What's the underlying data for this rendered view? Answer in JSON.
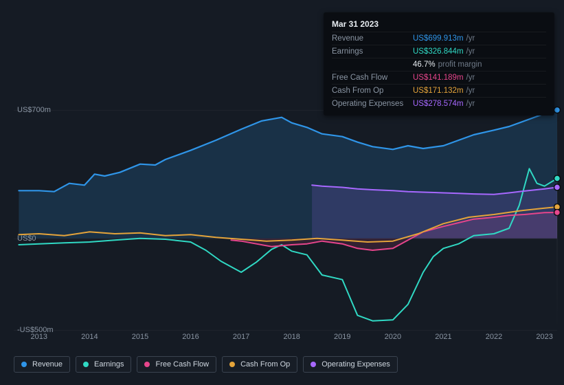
{
  "chart": {
    "type": "area-line",
    "background_color": "#151b24",
    "grid_color": "rgba(255,255,255,0.04)",
    "ylabel_color": "#8a95a3",
    "xlabel_color": "#8a95a3",
    "axis_fontsize": 11,
    "y_axis": {
      "min": -500,
      "max": 700,
      "ticks": [
        {
          "value": 700,
          "label": "US$700m"
        },
        {
          "value": 0,
          "label": "US$0"
        },
        {
          "value": -500,
          "label": "-US$500m"
        }
      ]
    },
    "x_axis": {
      "min": 2012.5,
      "max": 2023.25,
      "ticks": [
        2013,
        2014,
        2015,
        2016,
        2017,
        2018,
        2019,
        2020,
        2021,
        2022,
        2023
      ]
    },
    "cursor_x": 2023.25,
    "series": [
      {
        "id": "revenue",
        "label": "Revenue",
        "color": "#2f95e8",
        "fill_opacity": 0.18,
        "line_width": 2.2,
        "points": [
          [
            2012.6,
            260
          ],
          [
            2013.0,
            260
          ],
          [
            2013.3,
            255
          ],
          [
            2013.6,
            300
          ],
          [
            2013.9,
            290
          ],
          [
            2014.1,
            350
          ],
          [
            2014.3,
            340
          ],
          [
            2014.6,
            360
          ],
          [
            2015.0,
            405
          ],
          [
            2015.3,
            400
          ],
          [
            2015.5,
            430
          ],
          [
            2016.0,
            480
          ],
          [
            2016.5,
            535
          ],
          [
            2017.0,
            595
          ],
          [
            2017.4,
            640
          ],
          [
            2017.8,
            660
          ],
          [
            2018.0,
            630
          ],
          [
            2018.3,
            605
          ],
          [
            2018.6,
            570
          ],
          [
            2019.0,
            555
          ],
          [
            2019.3,
            525
          ],
          [
            2019.6,
            500
          ],
          [
            2020.0,
            485
          ],
          [
            2020.3,
            505
          ],
          [
            2020.6,
            490
          ],
          [
            2021.0,
            505
          ],
          [
            2021.3,
            535
          ],
          [
            2021.6,
            565
          ],
          [
            2022.0,
            590
          ],
          [
            2022.3,
            610
          ],
          [
            2022.6,
            640
          ],
          [
            2023.0,
            680
          ],
          [
            2023.25,
            699.913
          ]
        ]
      },
      {
        "id": "earnings",
        "label": "Earnings",
        "color": "#30d9c4",
        "fill_opacity": 0.0,
        "line_width": 2.0,
        "points": [
          [
            2012.6,
            -35
          ],
          [
            2013.0,
            -30
          ],
          [
            2013.5,
            -25
          ],
          [
            2014.0,
            -20
          ],
          [
            2014.5,
            -10
          ],
          [
            2015.0,
            0
          ],
          [
            2015.5,
            -5
          ],
          [
            2016.0,
            -20
          ],
          [
            2016.3,
            -65
          ],
          [
            2016.6,
            -125
          ],
          [
            2017.0,
            -185
          ],
          [
            2017.3,
            -130
          ],
          [
            2017.6,
            -60
          ],
          [
            2017.8,
            -35
          ],
          [
            2018.0,
            -70
          ],
          [
            2018.3,
            -90
          ],
          [
            2018.6,
            -200
          ],
          [
            2019.0,
            -225
          ],
          [
            2019.3,
            -420
          ],
          [
            2019.6,
            -450
          ],
          [
            2020.0,
            -445
          ],
          [
            2020.3,
            -360
          ],
          [
            2020.6,
            -185
          ],
          [
            2020.8,
            -100
          ],
          [
            2021.0,
            -55
          ],
          [
            2021.3,
            -30
          ],
          [
            2021.6,
            15
          ],
          [
            2022.0,
            25
          ],
          [
            2022.3,
            55
          ],
          [
            2022.5,
            180
          ],
          [
            2022.7,
            380
          ],
          [
            2022.85,
            300
          ],
          [
            2023.0,
            285
          ],
          [
            2023.25,
            326.844
          ]
        ]
      },
      {
        "id": "freecashflow",
        "label": "Free Cash Flow",
        "color": "#e6458b",
        "fill_opacity": 0.14,
        "line_width": 2.0,
        "points": [
          [
            2016.8,
            -10
          ],
          [
            2017.0,
            -15
          ],
          [
            2017.3,
            -30
          ],
          [
            2017.6,
            -45
          ],
          [
            2018.0,
            -35
          ],
          [
            2018.3,
            -30
          ],
          [
            2018.6,
            -15
          ],
          [
            2019.0,
            -30
          ],
          [
            2019.3,
            -55
          ],
          [
            2019.6,
            -65
          ],
          [
            2020.0,
            -55
          ],
          [
            2020.3,
            -10
          ],
          [
            2020.6,
            35
          ],
          [
            2021.0,
            65
          ],
          [
            2021.3,
            85
          ],
          [
            2021.6,
            105
          ],
          [
            2022.0,
            115
          ],
          [
            2022.3,
            125
          ],
          [
            2022.6,
            130
          ],
          [
            2023.0,
            140
          ],
          [
            2023.25,
            141.189
          ]
        ]
      },
      {
        "id": "cashfromop",
        "label": "Cash From Op",
        "color": "#e5a43a",
        "fill_opacity": 0.0,
        "line_width": 2.0,
        "points": [
          [
            2012.6,
            20
          ],
          [
            2013.0,
            25
          ],
          [
            2013.5,
            15
          ],
          [
            2014.0,
            35
          ],
          [
            2014.5,
            25
          ],
          [
            2015.0,
            30
          ],
          [
            2015.5,
            15
          ],
          [
            2016.0,
            20
          ],
          [
            2016.5,
            5
          ],
          [
            2017.0,
            -5
          ],
          [
            2017.5,
            -15
          ],
          [
            2018.0,
            -10
          ],
          [
            2018.5,
            0
          ],
          [
            2019.0,
            -10
          ],
          [
            2019.5,
            -20
          ],
          [
            2020.0,
            -15
          ],
          [
            2020.5,
            25
          ],
          [
            2021.0,
            80
          ],
          [
            2021.5,
            115
          ],
          [
            2022.0,
            130
          ],
          [
            2022.5,
            150
          ],
          [
            2023.0,
            165
          ],
          [
            2023.25,
            171.132
          ]
        ]
      },
      {
        "id": "opex",
        "label": "Operating Expenses",
        "color": "#a768ff",
        "fill_opacity": 0.16,
        "line_width": 2.0,
        "points": [
          [
            2018.4,
            290
          ],
          [
            2018.6,
            285
          ],
          [
            2019.0,
            278
          ],
          [
            2019.3,
            270
          ],
          [
            2019.6,
            265
          ],
          [
            2020.0,
            260
          ],
          [
            2020.3,
            255
          ],
          [
            2020.6,
            252
          ],
          [
            2021.0,
            248
          ],
          [
            2021.3,
            245
          ],
          [
            2021.6,
            242
          ],
          [
            2022.0,
            240
          ],
          [
            2022.3,
            248
          ],
          [
            2022.6,
            258
          ],
          [
            2023.0,
            270
          ],
          [
            2023.25,
            278.574
          ]
        ]
      }
    ],
    "markers": [
      {
        "series": "revenue",
        "x": 2023.25,
        "y": 699.913
      },
      {
        "series": "earnings",
        "x": 2023.25,
        "y": 326.844
      },
      {
        "series": "opex",
        "x": 2023.25,
        "y": 278.574
      },
      {
        "series": "cashfromop",
        "x": 2023.25,
        "y": 171.132
      },
      {
        "series": "freecashflow",
        "x": 2023.25,
        "y": 141.189
      }
    ]
  },
  "tooltip": {
    "date": "Mar 31 2023",
    "rows": [
      {
        "label": "Revenue",
        "value": "US$699.913m",
        "unit": "/yr",
        "color": "#2f95e8"
      },
      {
        "label": "Earnings",
        "value": "US$326.844m",
        "unit": "/yr",
        "color": "#30d9c4"
      },
      {
        "label": "",
        "value": "46.7%",
        "unit": "profit margin",
        "color": "#e6ebf0"
      },
      {
        "label": "Free Cash Flow",
        "value": "US$141.189m",
        "unit": "/yr",
        "color": "#e6458b"
      },
      {
        "label": "Cash From Op",
        "value": "US$171.132m",
        "unit": "/yr",
        "color": "#e5a43a"
      },
      {
        "label": "Operating Expenses",
        "value": "US$278.574m",
        "unit": "/yr",
        "color": "#a768ff"
      }
    ]
  },
  "legend": {
    "items": [
      {
        "id": "revenue",
        "label": "Revenue",
        "color": "#2f95e8"
      },
      {
        "id": "earnings",
        "label": "Earnings",
        "color": "#30d9c4"
      },
      {
        "id": "freecashflow",
        "label": "Free Cash Flow",
        "color": "#e6458b"
      },
      {
        "id": "cashfromop",
        "label": "Cash From Op",
        "color": "#e5a43a"
      },
      {
        "id": "opex",
        "label": "Operating Expenses",
        "color": "#a768ff"
      }
    ]
  }
}
